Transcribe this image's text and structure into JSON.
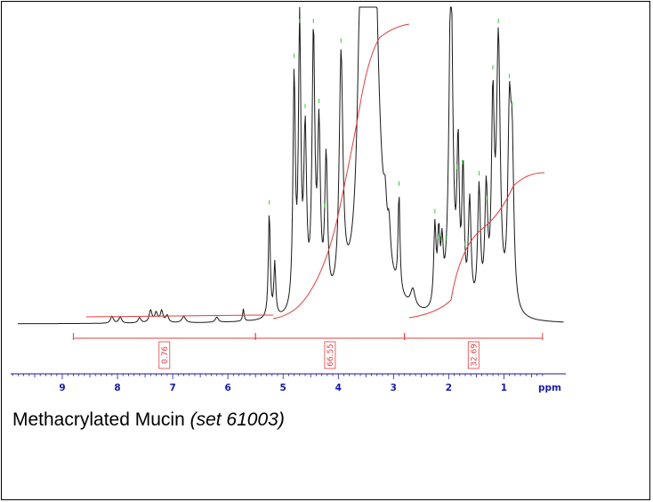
{
  "caption": {
    "sample": "Methacrylated Mucin",
    "set": "(set 61003)"
  },
  "colors": {
    "spectrum": "#1a1a1a",
    "integral": "#e04040",
    "axis": "#1a1aa6",
    "peak_marker": "#39c839"
  },
  "chart_data": {
    "type": "line",
    "x_unit": "ppm",
    "xlim": [
      10,
      0
    ],
    "xticks": [
      9,
      8,
      7,
      6,
      5,
      4,
      3,
      2,
      1
    ],
    "integration_regions": [
      {
        "from": 8.8,
        "to": 5.5,
        "value": "0.76"
      },
      {
        "from": 5.5,
        "to": 2.8,
        "value": "66.55"
      },
      {
        "from": 2.8,
        "to": 0.3,
        "value": "32.69"
      }
    ],
    "peaks_ppm": [
      8.1,
      7.9,
      7.6,
      7.4,
      7.3,
      7.2,
      7.1,
      6.8,
      6.2,
      5.7,
      5.25,
      5.15,
      4.8,
      4.7,
      4.45,
      4.35,
      4.2,
      3.95,
      3.4,
      3.1,
      3.05,
      2.9,
      2.65,
      2.25,
      2.2,
      2.15,
      1.95,
      1.85,
      1.75,
      1.6,
      1.45,
      1.3,
      1.1,
      0.9,
      0.85
    ],
    "peak_markers_ppm": [
      5.25,
      4.8,
      4.7,
      4.6,
      4.45,
      4.35,
      4.25,
      3.95,
      2.9,
      2.25,
      2.2,
      2.15,
      2.05,
      1.85,
      1.75,
      1.7,
      1.45,
      1.3,
      1.2,
      1.1,
      0.9,
      0.85
    ]
  }
}
